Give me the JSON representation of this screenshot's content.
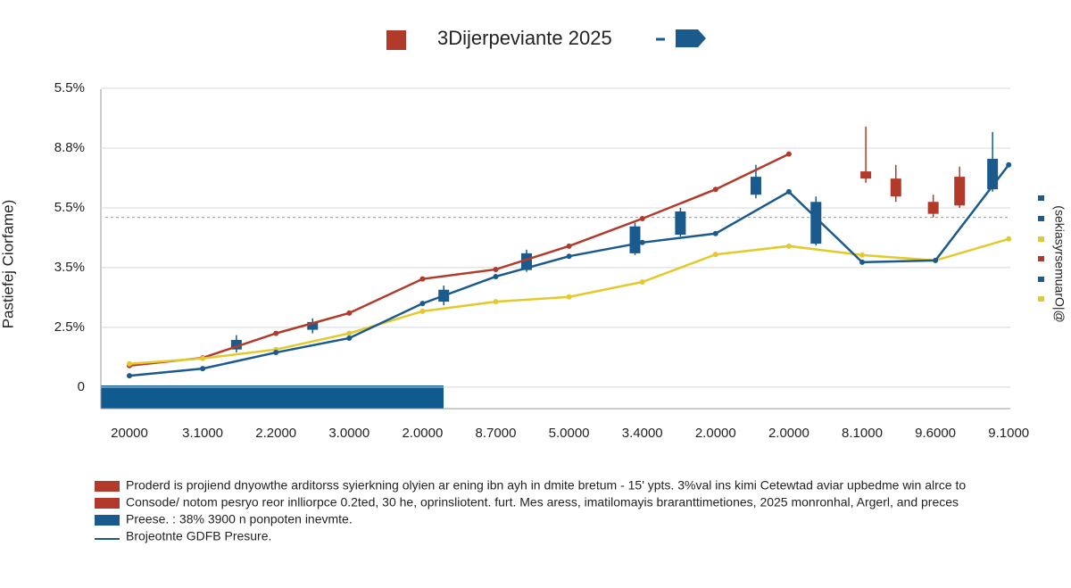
{
  "chart_data": {
    "type": "line",
    "title": "3Dijerpeviante 2025",
    "ylabel": "Pastiefej Ciorfame)",
    "side_label": "(sekiasyrsemuarO|@",
    "categories": [
      "20000",
      "3.1000",
      "2.2000",
      "3.0000",
      "2.0000",
      "8.7000",
      "5.0000",
      "3.4000",
      "2.0000",
      "2.0000",
      "8.1000",
      "9.6000",
      "9.1000"
    ],
    "ylim": [
      -0.36,
      5
    ],
    "yticks": [
      {
        "value": 0,
        "label": "0"
      },
      {
        "value": 1,
        "label": "2.5%"
      },
      {
        "value": 2,
        "label": "3.5%"
      },
      {
        "value": 3,
        "label": "5.5%"
      },
      {
        "value": 4,
        "label": "8.8%"
      },
      {
        "value": 5,
        "label": "5.5%"
      }
    ],
    "grid": true,
    "reference_line": 2.84,
    "series": [
      {
        "name": "Proderd is projiend dnyowthe arditorss syierkning olyien ar ening ibn ayh in dmite bretum - 15' ypts. 3%val ins kimi Cetewtad aviar upbedme win alrce  to",
        "color": "#b23a2a",
        "values": [
          0.36,
          0.49,
          0.9,
          1.24,
          1.81,
          1.97,
          2.36,
          2.82,
          3.31,
          3.9,
          null,
          null,
          null
        ]
      },
      {
        "name": "Consode/ notom pesryo reor inlliorpce 0.2ted, 30 he, oprinsliotent. furt. Mes aress, imatilomayis braranttimetiones, 2025 monronhal, Argerl, and preces",
        "color": "#e3c92c",
        "values": [
          0.39,
          0.48,
          0.63,
          0.9,
          1.27,
          1.43,
          1.51,
          1.76,
          2.22,
          2.36,
          2.21,
          2.12,
          2.48
        ]
      },
      {
        "name": "Brojeotnte GDFB Presure.",
        "color": "#1b5a8c",
        "values": [
          0.19,
          0.31,
          0.58,
          0.82,
          1.4,
          1.85,
          2.19,
          2.42,
          2.57,
          3.27,
          2.09,
          2.12,
          3.72
        ]
      }
    ],
    "bar_legend": "Preese. : 38% 3900 n ponpoten inevmte.",
    "candles": {
      "x": [
        1.46,
        2.5,
        4.29,
        5.42,
        6.9,
        7.52,
        8.55,
        9.37,
        10.05,
        10.46,
        10.97,
        11.33,
        11.78
      ],
      "open": [
        0.63,
        0.96,
        1.43,
        1.96,
        2.24,
        2.55,
        3.22,
        3.1,
        3.61,
        3.49,
        3.1,
        3.52,
        3.31
      ],
      "close": [
        0.79,
        1.09,
        1.63,
        2.24,
        2.69,
        2.94,
        3.52,
        2.4,
        3.49,
        3.19,
        2.9,
        3.04,
        3.82
      ],
      "high": [
        0.87,
        1.15,
        1.7,
        2.3,
        2.75,
        3.0,
        3.72,
        3.19,
        4.36,
        3.72,
        3.22,
        3.69,
        4.27
      ],
      "low": [
        0.58,
        0.9,
        1.37,
        1.93,
        2.21,
        2.52,
        3.16,
        2.37,
        3.42,
        3.1,
        2.84,
        3.0,
        3.27
      ],
      "colors": [
        "#1b5a8c",
        "#1b5a8c",
        "#1b5a8c",
        "#1b5a8c",
        "#1b5a8c",
        "#1b5a8c",
        "#1b5a8c",
        "#1b5a8c",
        "#b23a2a",
        "#b23a2a",
        "#b23a2a",
        "#b23a2a",
        "#1b5a8c"
      ]
    }
  }
}
